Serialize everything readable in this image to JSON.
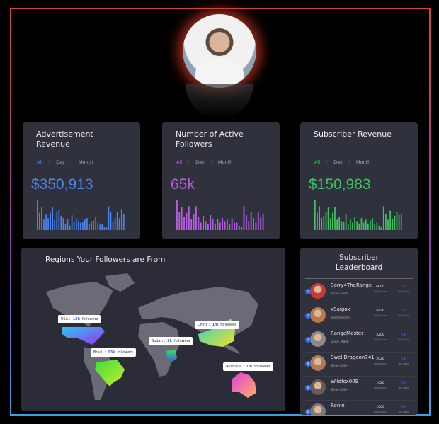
{
  "profile": {
    "avatar": "profile-photo"
  },
  "cards": [
    {
      "title": "Advertisement Revenue",
      "tabs": [
        "All",
        "Day",
        "Month"
      ],
      "value": "$350,913",
      "color": "#4a86f0",
      "bars": [
        100,
        58,
        78,
        35,
        52,
        40,
        58,
        78,
        35,
        60,
        70,
        48,
        40,
        22,
        38,
        15,
        50,
        28,
        40,
        30,
        25,
        28,
        35,
        40,
        20,
        30,
        32,
        45,
        25,
        18,
        20,
        12,
        10,
        80,
        62,
        30,
        40,
        62,
        40,
        70,
        55
      ]
    },
    {
      "title": "Number of Active Followers",
      "tabs": [
        "All",
        "Day",
        "Month"
      ],
      "value": "65k",
      "color": "#b65ee0",
      "bars": [
        100,
        60,
        78,
        45,
        58,
        80,
        38,
        55,
        80,
        45,
        25,
        48,
        30,
        20,
        50,
        38,
        22,
        38,
        25,
        40,
        30,
        35,
        20,
        40,
        25,
        25,
        15,
        10,
        80,
        50,
        30,
        60,
        40,
        25,
        60,
        42,
        55
      ]
    },
    {
      "title": "Subscriber Revenue",
      "tabs": [
        "All",
        "Day",
        "Month"
      ],
      "value": "$150,983",
      "color": "#3ec264",
      "bars": [
        100,
        58,
        80,
        40,
        48,
        60,
        78,
        40,
        58,
        78,
        35,
        45,
        30,
        28,
        52,
        22,
        38,
        25,
        45,
        30,
        22,
        40,
        25,
        35,
        22,
        32,
        40,
        20,
        25,
        15,
        12,
        80,
        55,
        35,
        65,
        38,
        48,
        62,
        50,
        55
      ]
    }
  ],
  "map": {
    "title": "Regions Your Followers are From",
    "regions": [
      {
        "name": "USA :",
        "value": "13k",
        "label": "followers"
      },
      {
        "name": "Brazil :",
        "value": "13k",
        "label": "followers"
      },
      {
        "name": "Sudan :",
        "value": "1k",
        "label": "followers"
      },
      {
        "name": "China :",
        "value": "1m",
        "label": "followers"
      },
      {
        "name": "Australia :",
        "value": "1m",
        "label": "followers"
      }
    ]
  },
  "leaderboard": {
    "title": "Subscriber Leaderboard",
    "score_label": "Highscore",
    "donated_label": "Donated",
    "rows": [
      {
        "rank": "1",
        "user": "Sorry4TheRange",
        "name": "Billie Eilish",
        "score": "6000",
        "donated": "15 K",
        "color": "#c83a3a"
      },
      {
        "rank": "2",
        "user": "xSaigox",
        "name": "Ed Sheeran",
        "score": "4420",
        "donated": "10 K",
        "color": "#b87a4a"
      },
      {
        "rank": "3",
        "user": "RangeMaster",
        "name": "Zayn Malik",
        "score": "3200",
        "donated": "5 K",
        "color": "#8a8a8a"
      },
      {
        "rank": "4",
        "user": "SwellDragoon741",
        "name": "Billie Eilish",
        "score": "2020",
        "donated": "5 K",
        "color": "#b07a5a"
      },
      {
        "rank": "5",
        "user": "Wildfox009",
        "name": "Billie Eilish",
        "score": "1020",
        "donated": "5 K",
        "color": "#6a5a5a"
      },
      {
        "rank": "6",
        "user": "Ronin",
        "name": "",
        "score": "1000",
        "donated": "3 K",
        "color": "#7a7a7a"
      }
    ]
  }
}
